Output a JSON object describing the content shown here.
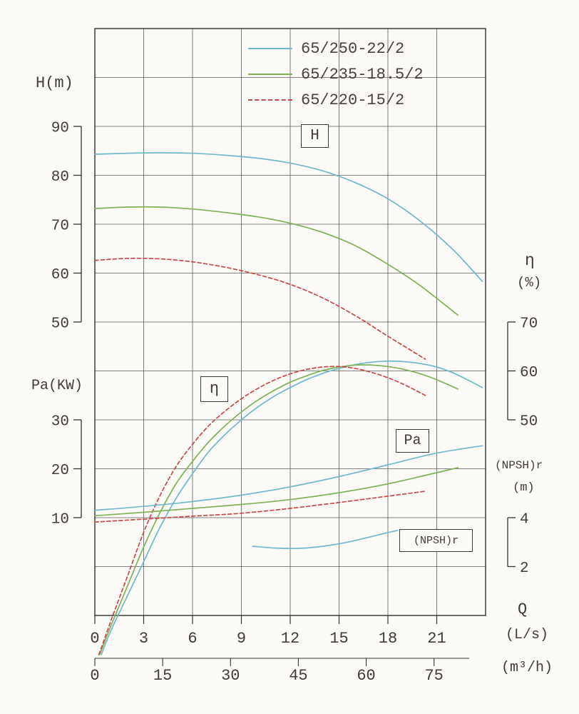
{
  "labels": {
    "h_axis": "H(m)",
    "pa_axis": "Pa(KW)",
    "eta_symbol": "η",
    "eta_unit": "(%)",
    "npsh_label": "(NPSH)r",
    "npsh_unit": "(m)",
    "q_symbol": "Q",
    "q_unit_ls": "(L/s)",
    "q_unit_m3h": "(m³/h)",
    "box_h": "H",
    "box_eta": "η",
    "box_pa": "Pa",
    "box_npshr": "(NPSH)r"
  },
  "legend": [
    {
      "label": "65/250-22/2",
      "color": "#6FB9CE",
      "style": "solid"
    },
    {
      "label": "65/235-18.5/2",
      "color": "#7DB356",
      "style": "solid"
    },
    {
      "label": "65/220-15/2",
      "color": "#C94949",
      "style": "dashed"
    }
  ],
  "chart_data": {
    "type": "line",
    "x": {
      "label": "Q",
      "units": [
        "(L/s)",
        "(m³/h)"
      ],
      "ticks_Ls": [
        0,
        3,
        6,
        9,
        12,
        15,
        18,
        21
      ],
      "ticks_m3h": [
        0,
        15,
        30,
        45,
        60,
        75
      ],
      "range_Ls": [
        0,
        24
      ],
      "m3h_per_Ls": 3.6
    },
    "axes": [
      {
        "id": "H",
        "label": "H(m)",
        "ticks": [
          90,
          80,
          70,
          60,
          50
        ]
      },
      {
        "id": "eta",
        "label": "η(%)",
        "ticks": [
          70,
          60,
          50
        ]
      },
      {
        "id": "Pa",
        "label": "Pa(KW)",
        "ticks": [
          30,
          20,
          10
        ]
      },
      {
        "id": "NPSH",
        "label": "(NPSH)r(m)",
        "ticks": [
          4,
          2
        ]
      }
    ],
    "series": [
      {
        "name": "65/250-22/2",
        "quantity": "H",
        "axis": "H",
        "color": "#6FB9CE",
        "style": "solid",
        "points": [
          [
            0,
            84.3
          ],
          [
            2,
            84.5
          ],
          [
            4,
            84.6
          ],
          [
            6,
            84.5
          ],
          [
            8,
            84.1
          ],
          [
            10,
            83.5
          ],
          [
            12,
            82.5
          ],
          [
            14,
            80.9
          ],
          [
            16,
            78.5
          ],
          [
            18,
            75.2
          ],
          [
            20,
            70.6
          ],
          [
            22,
            64.8
          ],
          [
            23.8,
            58.3
          ]
        ]
      },
      {
        "name": "65/235-18.5/2",
        "quantity": "H",
        "axis": "H",
        "color": "#7DB356",
        "style": "solid",
        "points": [
          [
            0,
            73.2
          ],
          [
            2,
            73.5
          ],
          [
            4,
            73.5
          ],
          [
            6,
            73.1
          ],
          [
            8,
            72.4
          ],
          [
            10,
            71.5
          ],
          [
            12,
            70.2
          ],
          [
            14,
            68.3
          ],
          [
            16,
            65.6
          ],
          [
            18,
            61.8
          ],
          [
            20,
            57.4
          ],
          [
            22.3,
            51.4
          ]
        ]
      },
      {
        "name": "65/220-15/2",
        "quantity": "H",
        "axis": "H",
        "color": "#C94949",
        "style": "dashed",
        "points": [
          [
            0,
            62.6
          ],
          [
            2,
            63.0
          ],
          [
            4,
            62.9
          ],
          [
            6,
            62.3
          ],
          [
            8,
            61.2
          ],
          [
            10,
            59.7
          ],
          [
            12,
            57.7
          ],
          [
            14,
            54.9
          ],
          [
            16,
            51.3
          ],
          [
            18,
            47.1
          ],
          [
            20.3,
            42.4
          ]
        ]
      },
      {
        "name": "65/250-22/2",
        "quantity": "eta",
        "axis": "eta",
        "color": "#6FB9CE",
        "style": "solid",
        "points": [
          [
            0.4,
            2
          ],
          [
            1,
            7
          ],
          [
            2,
            14
          ],
          [
            3,
            21
          ],
          [
            4,
            28
          ],
          [
            5,
            34
          ],
          [
            6,
            39
          ],
          [
            7,
            43.5
          ],
          [
            8,
            47
          ],
          [
            9,
            50
          ],
          [
            10,
            52.6
          ],
          [
            11,
            54.8
          ],
          [
            12,
            56.6
          ],
          [
            13,
            58.2
          ],
          [
            14,
            59.5
          ],
          [
            15,
            60.5
          ],
          [
            16,
            61.3
          ],
          [
            17,
            61.8
          ],
          [
            18,
            62
          ],
          [
            19,
            61.9
          ],
          [
            20,
            61.5
          ],
          [
            21,
            60.8
          ],
          [
            22,
            59.6
          ],
          [
            23,
            58
          ],
          [
            23.8,
            56.6
          ]
        ]
      },
      {
        "name": "65/235-18.5/2",
        "quantity": "eta",
        "axis": "eta",
        "color": "#7DB356",
        "style": "solid",
        "points": [
          [
            0.3,
            2
          ],
          [
            1,
            8
          ],
          [
            2,
            16
          ],
          [
            3,
            24
          ],
          [
            4,
            31
          ],
          [
            5,
            37
          ],
          [
            6,
            41.5
          ],
          [
            7,
            45.5
          ],
          [
            8,
            48.8
          ],
          [
            9,
            51.6
          ],
          [
            10,
            54
          ],
          [
            11,
            56
          ],
          [
            12,
            57.7
          ],
          [
            13,
            59
          ],
          [
            14,
            60.1
          ],
          [
            15,
            60.8
          ],
          [
            16,
            61.2
          ],
          [
            17,
            61.2
          ],
          [
            18,
            60.9
          ],
          [
            19,
            60.3
          ],
          [
            20,
            59.4
          ],
          [
            21,
            58.2
          ],
          [
            22.3,
            56.3
          ]
        ]
      },
      {
        "name": "65/220-15/2",
        "quantity": "eta",
        "axis": "eta",
        "color": "#C94949",
        "style": "dashed",
        "points": [
          [
            0.25,
            2
          ],
          [
            1,
            9
          ],
          [
            2,
            18
          ],
          [
            3,
            27
          ],
          [
            4,
            34.5
          ],
          [
            5,
            40.5
          ],
          [
            6,
            45
          ],
          [
            7,
            48.8
          ],
          [
            8,
            51.8
          ],
          [
            9,
            54.3
          ],
          [
            10,
            56.4
          ],
          [
            11,
            58.1
          ],
          [
            12,
            59.4
          ],
          [
            13,
            60.3
          ],
          [
            14,
            60.8
          ],
          [
            15,
            60.9
          ],
          [
            16,
            60.5
          ],
          [
            17,
            59.7
          ],
          [
            18,
            58.6
          ],
          [
            19,
            57.2
          ],
          [
            20.3,
            55
          ]
        ]
      },
      {
        "name": "65/250-22/2",
        "quantity": "Pa",
        "axis": "Pa",
        "color": "#6FB9CE",
        "style": "solid",
        "points": [
          [
            0,
            11.5
          ],
          [
            3,
            12.3
          ],
          [
            6,
            13.3
          ],
          [
            9,
            14.6
          ],
          [
            12,
            16.3
          ],
          [
            15,
            18.4
          ],
          [
            18,
            20.8
          ],
          [
            21,
            23.2
          ],
          [
            23.8,
            24.7
          ]
        ]
      },
      {
        "name": "65/235-18.5/2",
        "quantity": "Pa",
        "axis": "Pa",
        "color": "#7DB356",
        "style": "solid",
        "points": [
          [
            0,
            10.4
          ],
          [
            3,
            11.1
          ],
          [
            6,
            11.9
          ],
          [
            9,
            12.7
          ],
          [
            12,
            13.7
          ],
          [
            15,
            15.1
          ],
          [
            18,
            16.9
          ],
          [
            21,
            19.2
          ],
          [
            22.3,
            20.2
          ]
        ]
      },
      {
        "name": "65/220-15/2",
        "quantity": "Pa",
        "axis": "Pa",
        "color": "#C94949",
        "style": "dashed",
        "points": [
          [
            0,
            9.1
          ],
          [
            3,
            9.7
          ],
          [
            6,
            10.3
          ],
          [
            9,
            10.9
          ],
          [
            12,
            11.9
          ],
          [
            15,
            13.1
          ],
          [
            18,
            14.4
          ],
          [
            20.3,
            15.4
          ]
        ]
      },
      {
        "name": "65/250-22/2",
        "quantity": "NPSH",
        "axis": "NPSH",
        "color": "#6FB9CE",
        "style": "solid",
        "points": [
          [
            9.7,
            2.83
          ],
          [
            11,
            2.76
          ],
          [
            12,
            2.74
          ],
          [
            13,
            2.76
          ],
          [
            14,
            2.83
          ],
          [
            15,
            2.93
          ],
          [
            16,
            3.07
          ],
          [
            17,
            3.23
          ],
          [
            18,
            3.39
          ],
          [
            18.6,
            3.48
          ]
        ]
      }
    ]
  }
}
